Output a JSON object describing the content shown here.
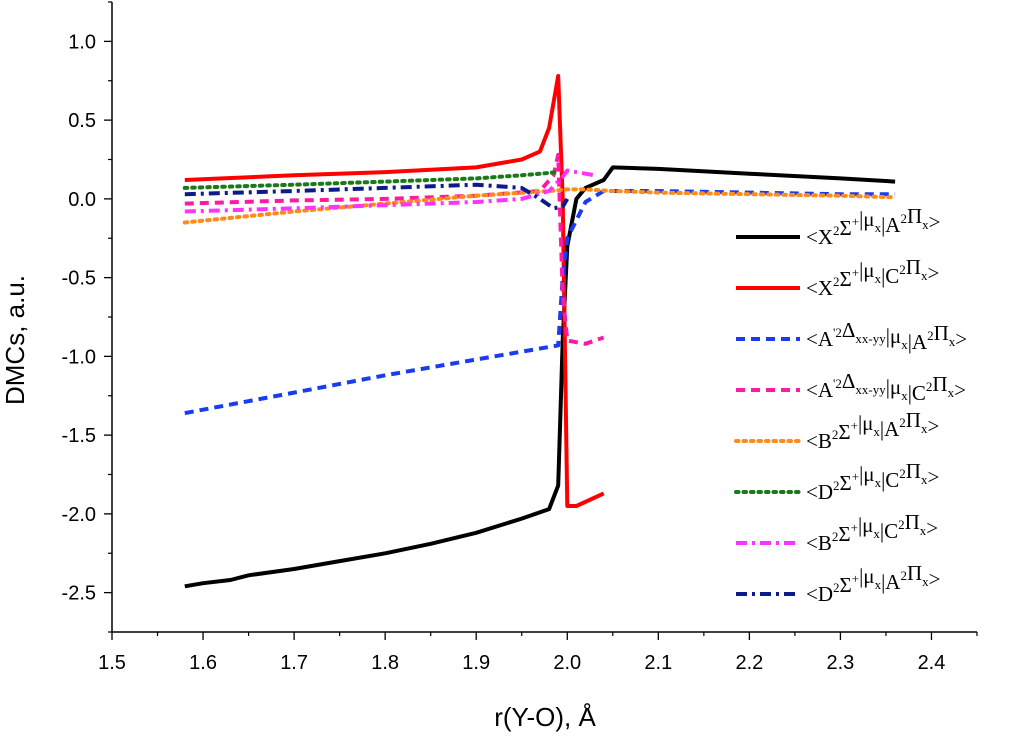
{
  "chart_data": {
    "type": "line",
    "title": "",
    "xlabel": "r(Y-O), Å",
    "ylabel": "DMCs, a.u.",
    "xlim": [
      1.5,
      2.45
    ],
    "ylim": [
      -2.75,
      1.25
    ],
    "xticks": [
      "1.5",
      "1.6",
      "1.7",
      "1.8",
      "1.9",
      "2.0",
      "2.1",
      "2.2",
      "2.3",
      "2.4"
    ],
    "yticks": [
      "-2.5",
      "-2.0",
      "-1.5",
      "-1.0",
      "-0.5",
      "0.0",
      "0.5",
      "1.0"
    ],
    "grid": false,
    "legend_position": "right",
    "series": [
      {
        "name": "<X²Σ⁺|μx|A²Πx>",
        "label_parts": [
          [
            "<X",
            ""
          ],
          [
            "2",
            "sup"
          ],
          [
            "Σ",
            ""
          ],
          [
            "+",
            "sup"
          ],
          [
            "|μ",
            ""
          ],
          [
            "x",
            "sub"
          ],
          [
            "|A",
            ""
          ],
          [
            "2",
            "sup"
          ],
          [
            "Π",
            ""
          ],
          [
            "x",
            "sub"
          ],
          [
            ">",
            ""
          ]
        ],
        "color": "#000000",
        "dash": "solid",
        "x": [
          1.58,
          1.6,
          1.63,
          1.65,
          1.7,
          1.75,
          1.8,
          1.85,
          1.9,
          1.95,
          1.98,
          1.99,
          1.995,
          2.0,
          2.01,
          2.02,
          2.04,
          2.05,
          2.1,
          2.2,
          2.3,
          2.36
        ],
        "y": [
          -2.46,
          -2.44,
          -2.42,
          -2.39,
          -2.35,
          -2.3,
          -2.25,
          -2.19,
          -2.12,
          -2.03,
          -1.97,
          -1.82,
          -0.9,
          -0.3,
          0.0,
          0.07,
          0.12,
          0.2,
          0.19,
          0.16,
          0.13,
          0.11
        ]
      },
      {
        "name": "<X²Σ⁺|μx|C²Πx>",
        "label_parts": [
          [
            "<X",
            ""
          ],
          [
            "2",
            "sup"
          ],
          [
            "Σ",
            ""
          ],
          [
            "+",
            "sup"
          ],
          [
            "|μ",
            ""
          ],
          [
            "x",
            "sub"
          ],
          [
            "|C",
            ""
          ],
          [
            "2",
            "sup"
          ],
          [
            "Π",
            ""
          ],
          [
            "x",
            "sub"
          ],
          [
            ">",
            ""
          ]
        ],
        "color": "#ff0000",
        "dash": "solid",
        "x": [
          1.58,
          1.7,
          1.8,
          1.9,
          1.95,
          1.97,
          1.98,
          1.99,
          1.995,
          2.0,
          2.01,
          2.04
        ],
        "y": [
          0.12,
          0.15,
          0.17,
          0.2,
          0.25,
          0.3,
          0.45,
          0.78,
          0.0,
          -1.95,
          -1.95,
          -1.87
        ]
      },
      {
        "name": "<A'²Δxx-yy|μx|A²Πx>",
        "label_parts": [
          [
            "<A",
            ""
          ],
          [
            "'2",
            "sup"
          ],
          [
            "Δ",
            ""
          ],
          [
            "xx-yy",
            "sub"
          ],
          [
            "|μ",
            ""
          ],
          [
            "x",
            "sub"
          ],
          [
            "|A",
            ""
          ],
          [
            "2",
            "sup"
          ],
          [
            "Π",
            ""
          ],
          [
            "x",
            "sub"
          ],
          [
            ">",
            ""
          ]
        ],
        "color": "#1a3cf0",
        "dash": "dash",
        "x": [
          1.58,
          1.7,
          1.8,
          1.9,
          1.99,
          1.995,
          2.0,
          2.02,
          2.04,
          2.1,
          2.2,
          2.3,
          2.36
        ],
        "y": [
          -1.36,
          -1.23,
          -1.12,
          -1.02,
          -0.93,
          -0.5,
          -0.25,
          -0.02,
          0.05,
          0.05,
          0.04,
          0.03,
          0.03
        ]
      },
      {
        "name": "<A'²Δxx-yy|μx|C²Πx>",
        "label_parts": [
          [
            "<A",
            ""
          ],
          [
            "'2",
            "sup"
          ],
          [
            "Δ",
            ""
          ],
          [
            "xx-yy",
            "sub"
          ],
          [
            "|μ",
            ""
          ],
          [
            "x",
            "sub"
          ],
          [
            "|C",
            ""
          ],
          [
            "2",
            "sup"
          ],
          [
            "Π",
            ""
          ],
          [
            "x",
            "sub"
          ],
          [
            ">",
            ""
          ]
        ],
        "color": "#ff1aa6",
        "dash": "dash",
        "x": [
          1.58,
          1.7,
          1.8,
          1.9,
          1.97,
          1.985,
          1.99,
          1.995,
          2.0,
          2.02,
          2.04
        ],
        "y": [
          -0.03,
          -0.01,
          0.0,
          0.02,
          0.05,
          0.15,
          0.28,
          -0.6,
          -0.9,
          -0.92,
          -0.88
        ]
      },
      {
        "name": "<B²Σ⁺|μx|A²Πx>",
        "label_parts": [
          [
            "<B",
            ""
          ],
          [
            "2",
            "sup"
          ],
          [
            "Σ",
            ""
          ],
          [
            "+",
            "sup"
          ],
          [
            "|μ",
            ""
          ],
          [
            "x",
            "sub"
          ],
          [
            "|A",
            ""
          ],
          [
            "2",
            "sup"
          ],
          [
            "Π",
            ""
          ],
          [
            "x",
            "sub"
          ],
          [
            ">",
            ""
          ]
        ],
        "color": "#ff8c1a",
        "dash": "dot",
        "x": [
          1.58,
          1.7,
          1.8,
          1.9,
          1.98,
          2.0,
          2.02,
          2.05,
          2.1,
          2.2,
          2.3,
          2.36
        ],
        "y": [
          -0.15,
          -0.08,
          -0.03,
          0.02,
          0.05,
          0.06,
          0.06,
          0.05,
          0.04,
          0.03,
          0.02,
          0.01
        ]
      },
      {
        "name": "<D²Σ⁺|μx|C²Πx>",
        "label_parts": [
          [
            "<D",
            ""
          ],
          [
            "2",
            "sup"
          ],
          [
            "Σ",
            ""
          ],
          [
            "+",
            "sup"
          ],
          [
            "|μ",
            ""
          ],
          [
            "x",
            "sub"
          ],
          [
            "|C",
            ""
          ],
          [
            "2",
            "sup"
          ],
          [
            "Π",
            ""
          ],
          [
            "x",
            "sub"
          ],
          [
            ">",
            ""
          ]
        ],
        "color": "#1a7a1a",
        "dash": "dot",
        "x": [
          1.58,
          1.7,
          1.8,
          1.9,
          1.95,
          1.99
        ],
        "y": [
          0.07,
          0.09,
          0.11,
          0.13,
          0.15,
          0.17
        ]
      },
      {
        "name": "<B²Σ⁺|μx|C²Πx>",
        "label_parts": [
          [
            "<B",
            ""
          ],
          [
            "2",
            "sup"
          ],
          [
            "Σ",
            ""
          ],
          [
            "+",
            "sup"
          ],
          [
            "|μ",
            ""
          ],
          [
            "x",
            "sub"
          ],
          [
            "|C",
            ""
          ],
          [
            "2",
            "sup"
          ],
          [
            "Π",
            ""
          ],
          [
            "x",
            "sub"
          ],
          [
            ">",
            ""
          ]
        ],
        "color": "#ff33ff",
        "dash": "dashdot",
        "x": [
          1.58,
          1.7,
          1.8,
          1.9,
          1.95,
          1.98,
          1.995,
          2.0,
          2.02,
          2.03
        ],
        "y": [
          -0.08,
          -0.06,
          -0.04,
          -0.02,
          0.0,
          0.05,
          0.14,
          0.18,
          0.16,
          0.15
        ]
      },
      {
        "name": "<D²Σ⁺|μx|A²Πx>",
        "label_parts": [
          [
            "<D",
            ""
          ],
          [
            "2",
            "sup"
          ],
          [
            "Σ",
            ""
          ],
          [
            "+",
            "sup"
          ],
          [
            "|μ",
            ""
          ],
          [
            "x",
            "sub"
          ],
          [
            "|A",
            ""
          ],
          [
            "2",
            "sup"
          ],
          [
            "Π",
            ""
          ],
          [
            "x",
            "sub"
          ],
          [
            ">",
            ""
          ]
        ],
        "color": "#0d1a8c",
        "dash": "dashdot",
        "x": [
          1.58,
          1.7,
          1.8,
          1.9,
          1.95,
          1.97,
          1.985,
          1.995,
          2.0
        ],
        "y": [
          0.03,
          0.05,
          0.07,
          0.09,
          0.07,
          0.0,
          -0.06,
          -0.05,
          0.0
        ]
      }
    ]
  }
}
